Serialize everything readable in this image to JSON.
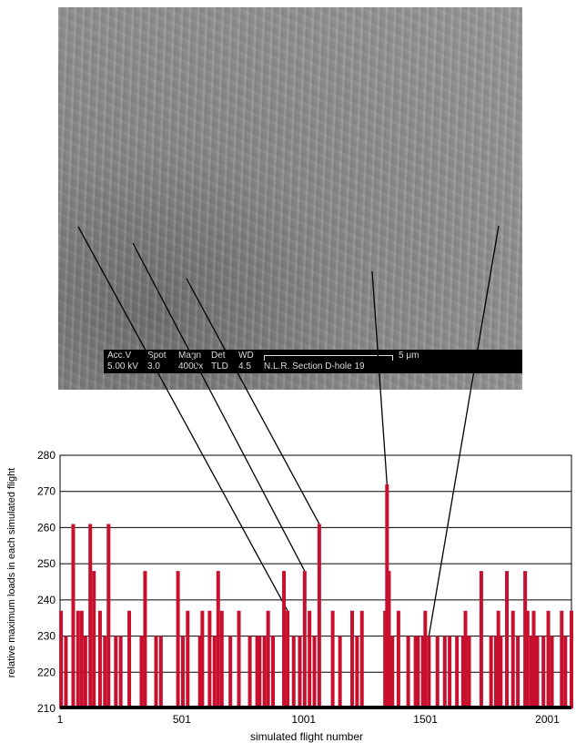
{
  "micrograph": {
    "labels": {
      "acc_v": "Acc.V",
      "spot": "Spot",
      "magn": "Magn",
      "det": "Det",
      "wd": "WD",
      "scale": "5 μm"
    },
    "values": {
      "acc_v": "5.00 kV",
      "spot": "3.0",
      "magn": "4000x",
      "det": "TLD",
      "wd": "4.5",
      "caption": "N.L.R. Section D-hole 19"
    }
  },
  "chart_data": {
    "type": "bar",
    "xlabel": "simulated flight number",
    "ylabel": "relative maximum loads in each simulated flight",
    "xlim": [
      1,
      2100
    ],
    "ylim": [
      210,
      280
    ],
    "xticks": [
      1,
      501,
      1001,
      1501,
      2001
    ],
    "yticks": [
      210,
      220,
      230,
      240,
      250,
      260,
      270,
      280
    ],
    "grid": "horizontal",
    "bar_color": "#c8102e",
    "x": [
      5,
      25,
      55,
      75,
      90,
      105,
      125,
      140,
      165,
      185,
      200,
      230,
      250,
      285,
      335,
      350,
      395,
      415,
      485,
      505,
      525,
      575,
      585,
      615,
      635,
      650,
      665,
      700,
      735,
      780,
      810,
      820,
      840,
      855,
      875,
      920,
      935,
      960,
      985,
      1005,
      1025,
      1045,
      1065,
      1120,
      1150,
      1200,
      1220,
      1240,
      1335,
      1350,
      1365,
      1390,
      1430,
      1460,
      1470,
      1490,
      1500,
      1515,
      1550,
      1580,
      1600,
      1630,
      1655,
      1665,
      1680,
      1730,
      1770,
      1790,
      1800,
      1810,
      1835,
      1860,
      1880,
      1910,
      1920,
      1935,
      1945,
      1960,
      1985,
      2005,
      2020,
      2060,
      2075,
      2100
    ],
    "values": [
      237,
      230,
      261,
      237,
      237,
      230,
      261,
      248,
      237,
      230,
      261,
      230,
      230,
      237,
      230,
      248,
      230,
      230,
      248,
      230,
      237,
      230,
      237,
      237,
      230,
      248,
      237,
      230,
      237,
      230,
      230,
      230,
      230,
      237,
      230,
      248,
      237,
      230,
      230,
      248,
      237,
      230,
      261,
      237,
      230,
      237,
      230,
      237,
      237,
      237,
      230,
      237,
      230,
      230,
      230,
      230,
      237,
      230,
      230,
      230,
      230,
      230,
      230,
      237,
      230,
      248,
      230,
      230,
      237,
      230,
      248,
      237,
      230,
      248,
      237,
      230,
      237,
      230,
      230,
      237,
      230,
      237,
      230,
      237
    ],
    "highlighted": [
      1343,
      1351
    ],
    "highlighted_values": [
      272,
      248
    ]
  }
}
